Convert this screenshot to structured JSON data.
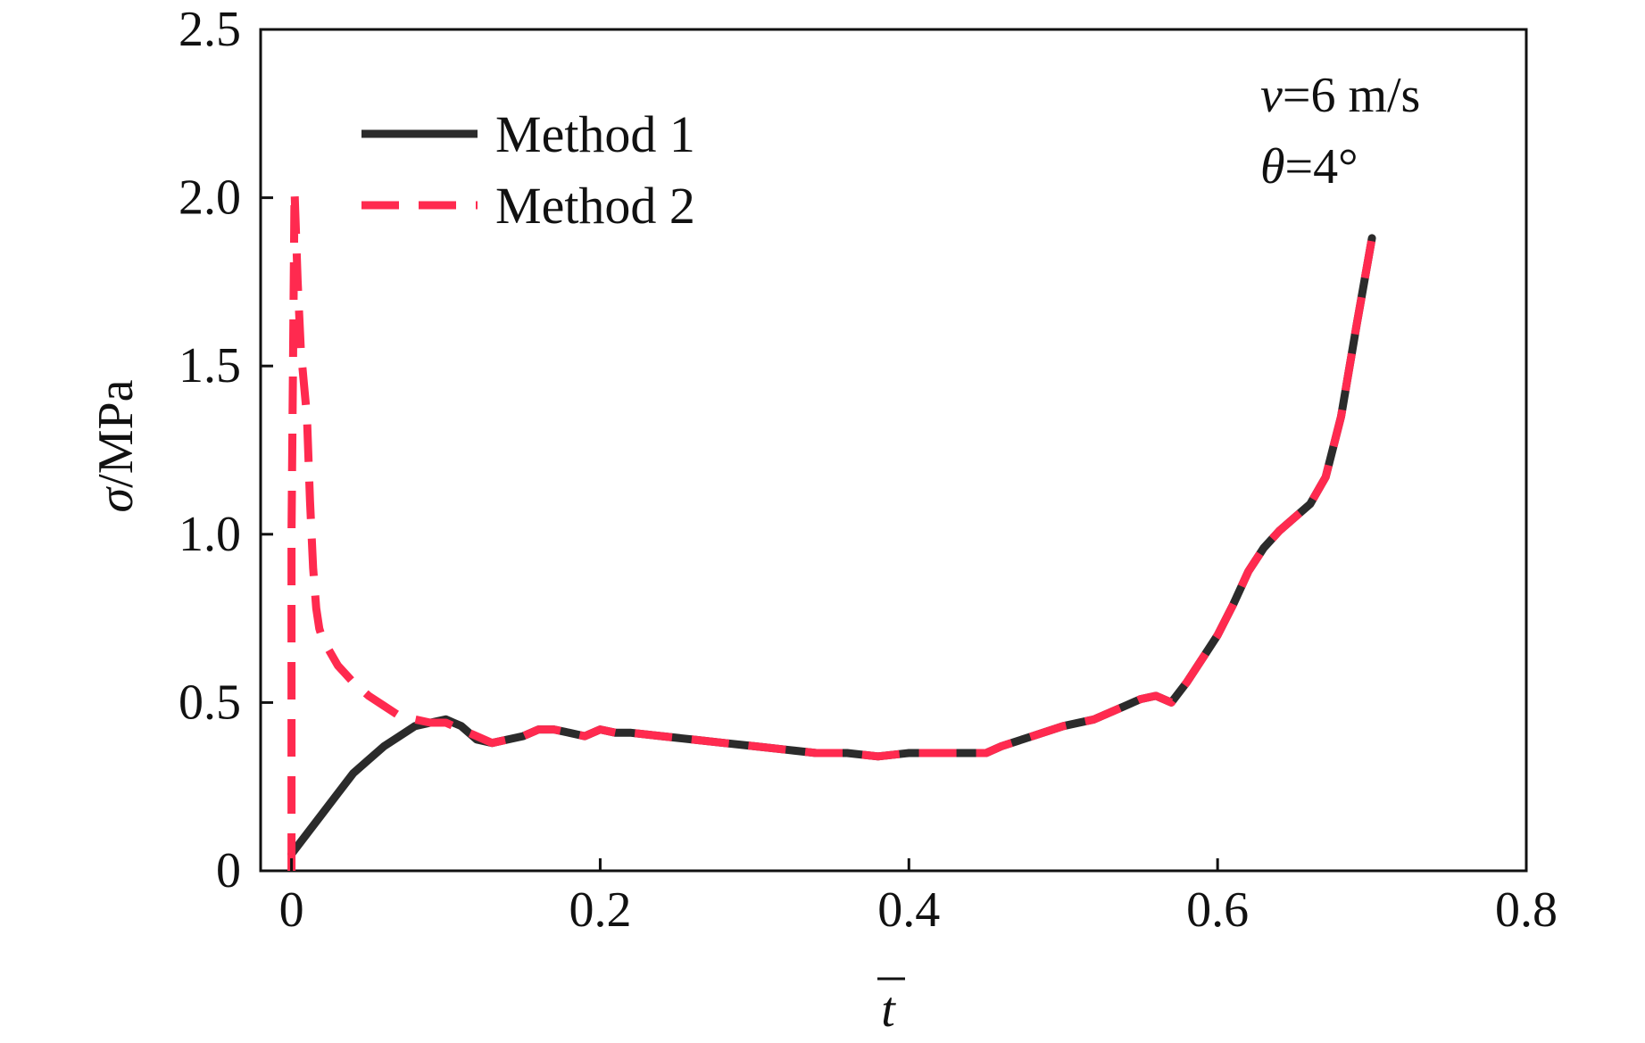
{
  "chart_data": {
    "type": "line",
    "title": "",
    "xlabel": "t",
    "xlabel_overbar": true,
    "ylabel_symbol": "σ",
    "ylabel_unit": "/MPa",
    "xlim": [
      -0.02,
      0.8
    ],
    "ylim": [
      0,
      2.5
    ],
    "xticks": [
      0,
      0.2,
      0.4,
      0.6,
      0.8
    ],
    "xtick_labels": [
      "0",
      "0.2",
      "0.4",
      "0.6",
      "0.8"
    ],
    "yticks": [
      0,
      0.5,
      1.0,
      1.5,
      2.0,
      2.5
    ],
    "ytick_labels": [
      "0",
      "0.5",
      "1.0",
      "1.5",
      "2.0",
      "2.5"
    ],
    "grid": false,
    "legend_position": "top-left",
    "annotations": [
      {
        "symbol": "v",
        "text": "=6 m/s"
      },
      {
        "symbol": "θ",
        "text": "=4°"
      }
    ],
    "series": [
      {
        "name": "Method 1",
        "color": "#2b2b2b",
        "style": "solid",
        "x": [
          0.0,
          0.01,
          0.02,
          0.03,
          0.04,
          0.05,
          0.06,
          0.07,
          0.08,
          0.09,
          0.1,
          0.11,
          0.12,
          0.13,
          0.14,
          0.15,
          0.16,
          0.17,
          0.18,
          0.19,
          0.2,
          0.21,
          0.22,
          0.24,
          0.26,
          0.28,
          0.3,
          0.32,
          0.34,
          0.36,
          0.38,
          0.4,
          0.42,
          0.44,
          0.45,
          0.46,
          0.48,
          0.5,
          0.52,
          0.54,
          0.55,
          0.56,
          0.57,
          0.58,
          0.59,
          0.6,
          0.61,
          0.62,
          0.63,
          0.64,
          0.65,
          0.66,
          0.67,
          0.68,
          0.69,
          0.7
        ],
        "y": [
          0.05,
          0.11,
          0.17,
          0.23,
          0.29,
          0.33,
          0.37,
          0.4,
          0.43,
          0.44,
          0.45,
          0.43,
          0.39,
          0.38,
          0.39,
          0.4,
          0.42,
          0.42,
          0.41,
          0.4,
          0.42,
          0.41,
          0.41,
          0.4,
          0.39,
          0.38,
          0.37,
          0.36,
          0.35,
          0.35,
          0.34,
          0.35,
          0.35,
          0.35,
          0.35,
          0.37,
          0.4,
          0.43,
          0.45,
          0.49,
          0.51,
          0.52,
          0.5,
          0.56,
          0.63,
          0.7,
          0.79,
          0.89,
          0.96,
          1.01,
          1.05,
          1.09,
          1.17,
          1.35,
          1.62,
          1.88
        ]
      },
      {
        "name": "Method 2",
        "color": "#ff2a4f",
        "style": "dashed",
        "x": [
          0.0,
          0.0,
          0.002,
          0.004,
          0.006,
          0.008,
          0.01,
          0.012,
          0.014,
          0.016,
          0.018,
          0.02,
          0.025,
          0.03,
          0.04,
          0.05,
          0.06,
          0.07,
          0.08,
          0.09,
          0.1,
          0.11,
          0.12,
          0.13,
          0.14,
          0.15,
          0.16,
          0.17,
          0.18,
          0.19,
          0.2,
          0.21,
          0.22,
          0.24,
          0.26,
          0.28,
          0.3,
          0.32,
          0.34,
          0.36,
          0.38,
          0.4,
          0.42,
          0.44,
          0.45,
          0.46,
          0.48,
          0.5,
          0.52,
          0.54,
          0.55,
          0.56,
          0.57,
          0.58,
          0.59,
          0.6,
          0.61,
          0.62,
          0.63,
          0.64,
          0.65,
          0.66,
          0.67,
          0.68,
          0.69,
          0.7
        ],
        "y": [
          0.0,
          1.0,
          2.02,
          1.75,
          1.55,
          1.45,
          1.35,
          1.1,
          0.9,
          0.78,
          0.72,
          0.69,
          0.65,
          0.61,
          0.56,
          0.52,
          0.49,
          0.46,
          0.45,
          0.44,
          0.44,
          0.42,
          0.4,
          0.38,
          0.39,
          0.4,
          0.42,
          0.42,
          0.41,
          0.4,
          0.42,
          0.41,
          0.41,
          0.4,
          0.39,
          0.38,
          0.37,
          0.36,
          0.35,
          0.35,
          0.34,
          0.35,
          0.35,
          0.35,
          0.35,
          0.37,
          0.4,
          0.43,
          0.45,
          0.49,
          0.51,
          0.52,
          0.5,
          0.56,
          0.63,
          0.7,
          0.79,
          0.89,
          0.96,
          1.01,
          1.05,
          1.09,
          1.17,
          1.35,
          1.62,
          1.88
        ]
      }
    ]
  }
}
